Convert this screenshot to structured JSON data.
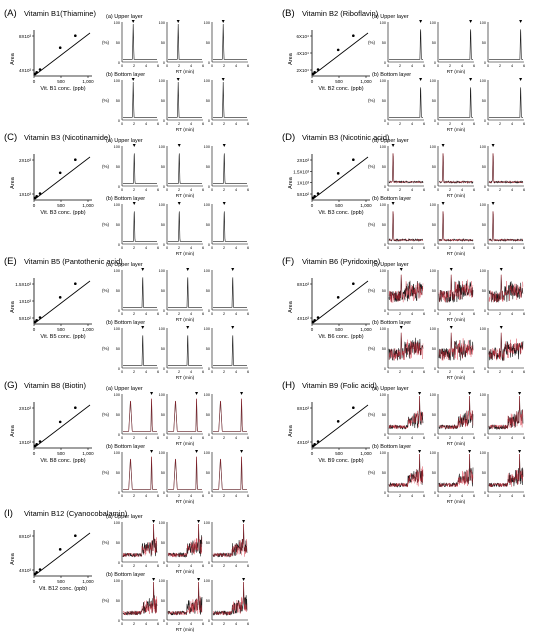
{
  "figure": {
    "panels": [
      {
        "id": "A",
        "letter": "(A)",
        "title": "Vitamin B1(Thiamine)",
        "cal_xlabel": "Vit. B1 conc. (ppb)",
        "cal_yticks": [
          "8X10³",
          "4X10³"
        ],
        "cal_xticks": [
          "0",
          "500",
          "1,000"
        ],
        "peak": 0.3,
        "noise": "clean",
        "cal_points": [
          [
            0,
            0.02
          ],
          [
            0.03,
            0.05
          ],
          [
            0.09,
            0.1
          ],
          [
            0.45,
            0.5
          ],
          [
            0.72,
            0.72
          ]
        ],
        "upper_label": "(a) Upper layer",
        "bottom_label": "(b) Bottom layer",
        "rt_label": "RT (min)",
        "pct_label": "(%)",
        "trace_yticks": [
          "100",
          "50",
          "0"
        ],
        "trace_xticks": [
          "0",
          "2",
          "4",
          "6"
        ]
      },
      {
        "id": "B",
        "letter": "(B)",
        "title": "Vitamin B2 (Riboflavin)",
        "cal_xlabel": "Vit. B2 conc. (ppb)",
        "cal_yticks": [
          "6X10⁴",
          "4X10⁴",
          "2X10⁴"
        ],
        "cal_xticks": [
          "0",
          "500",
          "1,000"
        ],
        "peak": 0.93,
        "noise": "clean",
        "cal_points": [
          [
            0,
            0.02
          ],
          [
            0.03,
            0.05
          ],
          [
            0.09,
            0.1
          ],
          [
            0.45,
            0.46
          ],
          [
            0.72,
            0.72
          ]
        ],
        "upper_label": "(a) Upper layer",
        "bottom_label": "(b) Bottom layer",
        "rt_label": "RT (min)",
        "pct_label": "(%)",
        "trace_yticks": [
          "100",
          "50",
          "0"
        ],
        "trace_xticks": [
          "0",
          "2",
          "4",
          "6"
        ]
      },
      {
        "id": "C",
        "letter": "(C)",
        "title": "Vitamin B3 (Nicotinamide)",
        "cal_xlabel": "Vit. B3 conc. (ppb)",
        "cal_yticks": [
          "2X10³",
          "1X10³"
        ],
        "cal_xticks": [
          "0",
          "500",
          "1,000"
        ],
        "peak": 0.33,
        "noise": "clean",
        "cal_points": [
          [
            0,
            0.02
          ],
          [
            0.03,
            0.05
          ],
          [
            0.09,
            0.1
          ],
          [
            0.45,
            0.48
          ],
          [
            0.72,
            0.72
          ]
        ],
        "upper_label": "(a) Upper layer",
        "bottom_label": "(b) Bottom layer",
        "rt_label": "RT (min)",
        "pct_label": "(%)",
        "trace_yticks": [
          "100",
          "50",
          "0"
        ],
        "trace_xticks": [
          "0",
          "2",
          "4",
          "6"
        ]
      },
      {
        "id": "D",
        "letter": "(D)",
        "title": "Vitamin B3 (Nicotinic acid)",
        "cal_xlabel": "Vit. B3 conc. (ppb)",
        "cal_yticks": [
          "2X10³",
          "1.5X10³",
          "1X10³",
          "5X10²"
        ],
        "cal_xticks": [
          "0",
          "500",
          "1,000"
        ],
        "peak": 0.12,
        "noise": "light",
        "cal_points": [
          [
            0,
            0.02
          ],
          [
            0.03,
            0.05
          ],
          [
            0.09,
            0.1
          ],
          [
            0.45,
            0.47
          ],
          [
            0.72,
            0.72
          ]
        ],
        "upper_label": "(a) Upper layer",
        "bottom_label": "(b) Bottom layer",
        "rt_label": "RT (min)",
        "pct_label": "(%)",
        "trace_yticks": [
          "100",
          "50",
          "0"
        ],
        "trace_xticks": [
          "0",
          "2",
          "4",
          "6"
        ]
      },
      {
        "id": "E",
        "letter": "(E)",
        "title": "Vitamin B5 (Pantothenic acid)",
        "cal_xlabel": "Vit. B5 conc. (ppb)",
        "cal_yticks": [
          "1.5X10³",
          "1X10³",
          "5X10²"
        ],
        "cal_xticks": [
          "0",
          "500",
          "1,000"
        ],
        "peak": 0.58,
        "noise": "clean",
        "cal_points": [
          [
            0,
            0.02
          ],
          [
            0.03,
            0.05
          ],
          [
            0.09,
            0.1
          ],
          [
            0.45,
            0.47
          ],
          [
            0.72,
            0.72
          ]
        ],
        "upper_label": "(a) Upper layer",
        "bottom_label": "(b) Bottom layer",
        "rt_label": "RT (min)",
        "pct_label": "(%)",
        "trace_yticks": [
          "100",
          "50",
          "0"
        ],
        "trace_xticks": [
          "0",
          "2",
          "4",
          "6"
        ]
      },
      {
        "id": "F",
        "letter": "(F)",
        "title": "Vitamin B6 (Pyridoxine)",
        "cal_xlabel": "Vit. B6 conc. (ppb)",
        "cal_yticks": [
          "8X10³",
          "4X10³"
        ],
        "cal_xticks": [
          "0",
          "500",
          "1,000"
        ],
        "peak": 0.36,
        "noise": "heavy",
        "cal_points": [
          [
            0,
            0.02
          ],
          [
            0.03,
            0.05
          ],
          [
            0.09,
            0.1
          ],
          [
            0.45,
            0.47
          ],
          [
            0.72,
            0.72
          ]
        ],
        "upper_label": "(a) Upper layer",
        "bottom_label": "(b) Bottom layer",
        "rt_label": "RT (min)",
        "pct_label": "(%)",
        "trace_yticks": [
          "100",
          "50",
          "0"
        ],
        "trace_xticks": [
          "0",
          "2",
          "4",
          "6"
        ]
      },
      {
        "id": "G",
        "letter": "(G)",
        "title": "Vitamin B8 (Biotin)",
        "cal_xlabel": "Vit. B8 conc. (ppb)",
        "cal_yticks": [
          "2X10³",
          "1X10³"
        ],
        "cal_xticks": [
          "0",
          "500",
          "1,000"
        ],
        "peak": 0.84,
        "noise": "biotin",
        "cal_points": [
          [
            0,
            0.02
          ],
          [
            0.03,
            0.05
          ],
          [
            0.09,
            0.1
          ],
          [
            0.45,
            0.46
          ],
          [
            0.72,
            0.72
          ]
        ],
        "upper_label": "(a) Upper layer",
        "bottom_label": "(b) Bottom layer",
        "rt_label": "RT (min)",
        "pct_label": "(%)",
        "trace_yticks": [
          "100",
          "50",
          "0"
        ],
        "trace_xticks": [
          "0",
          "2",
          "4",
          "6"
        ]
      },
      {
        "id": "H",
        "letter": "(H)",
        "title": "Vitamin B9 (Folic acid)",
        "cal_xlabel": "Vit. B9 conc. (ppb)",
        "cal_yticks": [
          "8X10³",
          "4X10³"
        ],
        "cal_xticks": [
          "0",
          "500",
          "1,000"
        ],
        "peak": 0.9,
        "noise": "folic",
        "cal_points": [
          [
            0,
            0.02
          ],
          [
            0.03,
            0.05
          ],
          [
            0.09,
            0.1
          ],
          [
            0.45,
            0.47
          ],
          [
            0.72,
            0.72
          ]
        ],
        "upper_label": "(a) Upper layer",
        "bottom_label": "(b) Bottom layer",
        "rt_label": "RT (min)",
        "pct_label": "(%)",
        "trace_yticks": [
          "100",
          "50",
          "0"
        ],
        "trace_xticks": [
          "0",
          "2",
          "4",
          "6"
        ]
      },
      {
        "id": "I",
        "letter": "(I)",
        "title": "Vitamin B12 (Cyanocobalamin)",
        "cal_xlabel": "Vit. B12 conc. (ppb)",
        "cal_yticks": [
          "8X10³",
          "4X10³"
        ],
        "cal_xticks": [
          "0",
          "500",
          "1,000"
        ],
        "peak": 0.9,
        "noise": "folic",
        "cal_points": [
          [
            0,
            0.02
          ],
          [
            0.03,
            0.05
          ],
          [
            0.09,
            0.1
          ],
          [
            0.45,
            0.47
          ],
          [
            0.72,
            0.72
          ]
        ],
        "upper_label": "(a) Upper layer",
        "bottom_label": "(b) Bottom layer",
        "rt_label": "RT (min)",
        "pct_label": "(%)",
        "trace_yticks": [
          "100",
          "50",
          "0"
        ],
        "trace_xticks": [
          "0",
          "2",
          "4",
          "6"
        ]
      }
    ],
    "area_label": "Area",
    "colors": {
      "trace": "#1a1a1a",
      "trace_alt": "#3a8a8a",
      "marker": "#d42a3a",
      "axis": "#000000"
    }
  }
}
